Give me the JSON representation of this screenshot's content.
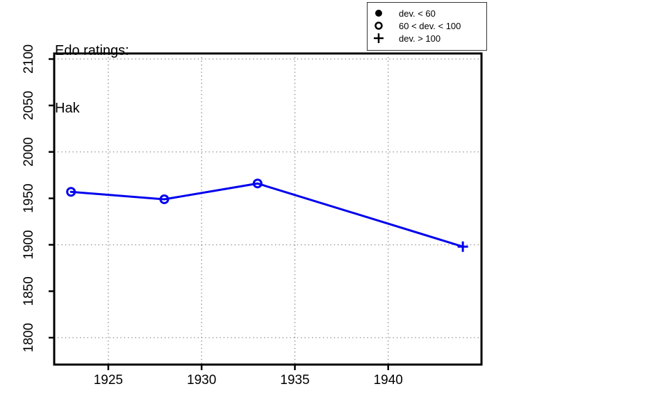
{
  "chart_data": {
    "type": "line",
    "title_line1": "Edo ratings:",
    "title_line2": "Hak",
    "player": "Hak",
    "xlim": [
      1922.1,
      1945.0
    ],
    "ylim": [
      1771,
      2106
    ],
    "x_ticks": [
      1925,
      1930,
      1935,
      1940
    ],
    "y_ticks": [
      1800,
      1850,
      1900,
      1950,
      2000,
      2050,
      2100
    ],
    "grid_x_years": [
      1925,
      1930,
      1935,
      1940
    ],
    "grid_y_values": [
      1800,
      1900,
      2000,
      2100
    ],
    "series": [
      {
        "name": "Hak rating",
        "color": "#0000EE",
        "points": [
          {
            "year": 1923,
            "rating": 1957,
            "marker": "open-circle"
          },
          {
            "year": 1928,
            "rating": 1949,
            "marker": "open-circle"
          },
          {
            "year": 1933,
            "rating": 1966,
            "marker": "open-circle"
          },
          {
            "year": 1944,
            "rating": 1898,
            "marker": "plus"
          }
        ]
      }
    ],
    "legend": [
      {
        "symbol": "filled-circle",
        "label": "dev. < 60"
      },
      {
        "symbol": "open-circle",
        "label": "60 < dev. < 100"
      },
      {
        "symbol": "plus",
        "label": "dev. > 100"
      }
    ],
    "colors": {
      "line": "#0000EE",
      "axis": "#000000",
      "grid": "#808080",
      "background": "#FFFFFF"
    }
  }
}
